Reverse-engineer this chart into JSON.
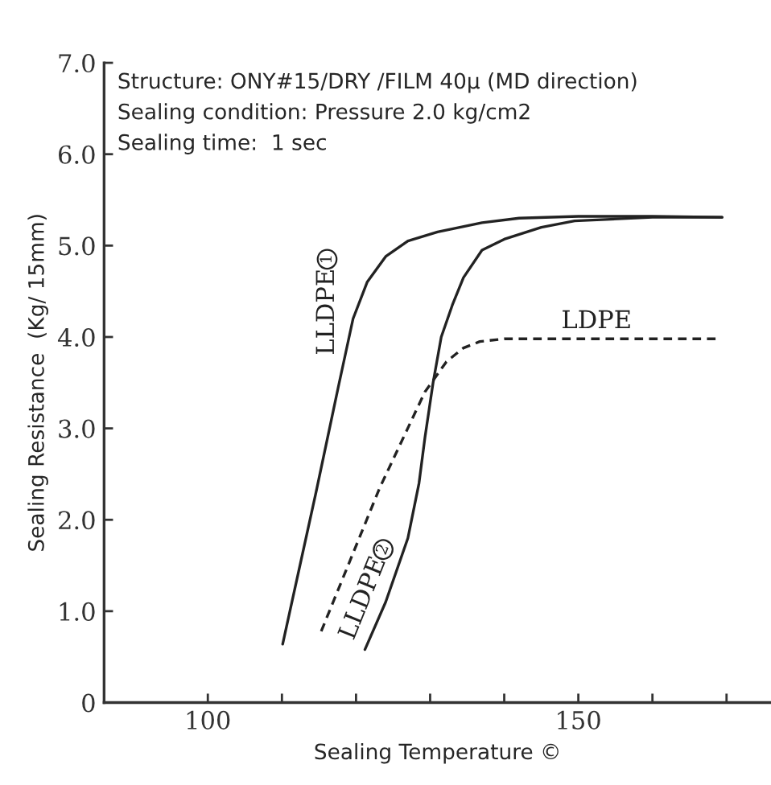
{
  "chart_data": {
    "type": "line",
    "xlabel": "Sealing Temperature ©",
    "ylabel": "Sealing Resistance  (Kg/ 15mm)",
    "annotations": [
      "Structure: ONY#15/DRY /FILM 40µ (MD direction)",
      "Sealing condition: Pressure 2.0 kg/cm2",
      "Sealing time:  1 sec"
    ],
    "xlim": [
      86,
      176
    ],
    "ylim": [
      0,
      7
    ],
    "xticks": [
      100,
      {
        "value": 110,
        "label": null
      },
      {
        "value": 120,
        "label": null
      },
      {
        "value": 130,
        "label": null
      },
      {
        "value": 140,
        "label": null
      },
      150,
      {
        "value": 160,
        "label": null
      },
      {
        "value": 170,
        "label": null
      }
    ],
    "yticks": [
      0,
      {
        "value": 1,
        "label": "1.0"
      },
      {
        "value": 2,
        "label": "2.0"
      },
      {
        "value": 3,
        "label": "3.0"
      },
      {
        "value": 4,
        "label": "4.0"
      },
      {
        "value": 5,
        "label": "5.0"
      },
      {
        "value": 6,
        "label": "6.0"
      },
      {
        "value": 7,
        "label": "7.0"
      }
    ],
    "grid": false,
    "legend": false,
    "series": [
      {
        "name": "LLDPE1",
        "color": "#222222",
        "line_style": "solid",
        "x": [
          110.1,
          114.6,
          117.6,
          119.6,
          121.5,
          124,
          127,
          131,
          137,
          142,
          150,
          160,
          169.4
        ],
        "values": [
          0.64,
          2.3,
          3.45,
          4.2,
          4.6,
          4.88,
          5.05,
          5.15,
          5.25,
          5.3,
          5.32,
          5.32,
          5.31
        ]
      },
      {
        "name": "LLDPE2",
        "color": "#222222",
        "line_style": "solid",
        "x": [
          121.2,
          124,
          127,
          128.5,
          129.3,
          130.4,
          131.5,
          133,
          134.5,
          137,
          140,
          145,
          149.5,
          160,
          169.4
        ],
        "values": [
          0.58,
          1.1,
          1.8,
          2.4,
          2.9,
          3.5,
          4.0,
          4.35,
          4.65,
          4.95,
          5.07,
          5.2,
          5.27,
          5.31,
          5.31
        ]
      },
      {
        "name": "LDPE",
        "color": "#222222",
        "line_style": "dashed",
        "x": [
          115.3,
          123.2,
          129.3,
          132.2,
          134.5,
          136.7,
          140,
          169.1
        ],
        "values": [
          0.78,
          2.35,
          3.4,
          3.73,
          3.88,
          3.95,
          3.98,
          3.98
        ]
      }
    ]
  }
}
